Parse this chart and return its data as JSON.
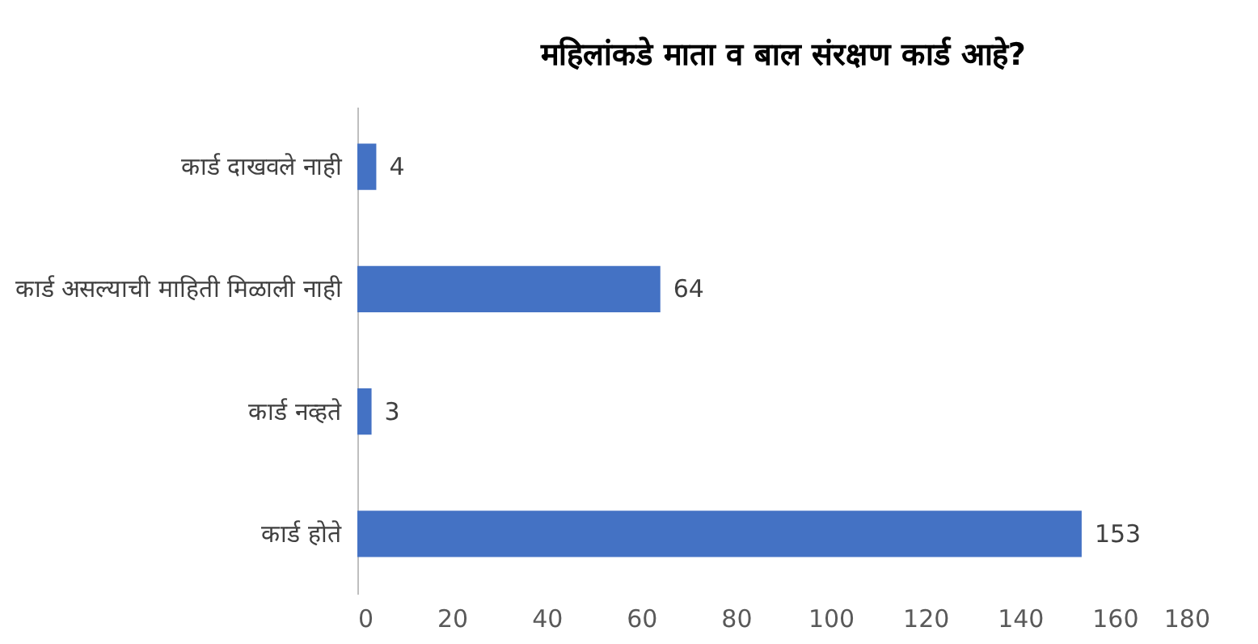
{
  "chart_data": {
    "type": "bar",
    "orientation": "horizontal",
    "title": "महिलांकडे माता व बाल संरक्षण कार्ड आहे?",
    "categories": [
      "कार्ड दाखवले नाही",
      "कार्ड असल्याची माहिती मिळाली नाही",
      "कार्ड नव्हते",
      "कार्ड होते"
    ],
    "values": [
      4,
      64,
      3,
      153
    ],
    "color": "#4472c4",
    "xlim": [
      0,
      180
    ],
    "xticks": [
      0,
      20,
      40,
      60,
      80,
      100,
      120,
      140,
      160,
      180
    ],
    "grid": false,
    "data_labels": true
  }
}
